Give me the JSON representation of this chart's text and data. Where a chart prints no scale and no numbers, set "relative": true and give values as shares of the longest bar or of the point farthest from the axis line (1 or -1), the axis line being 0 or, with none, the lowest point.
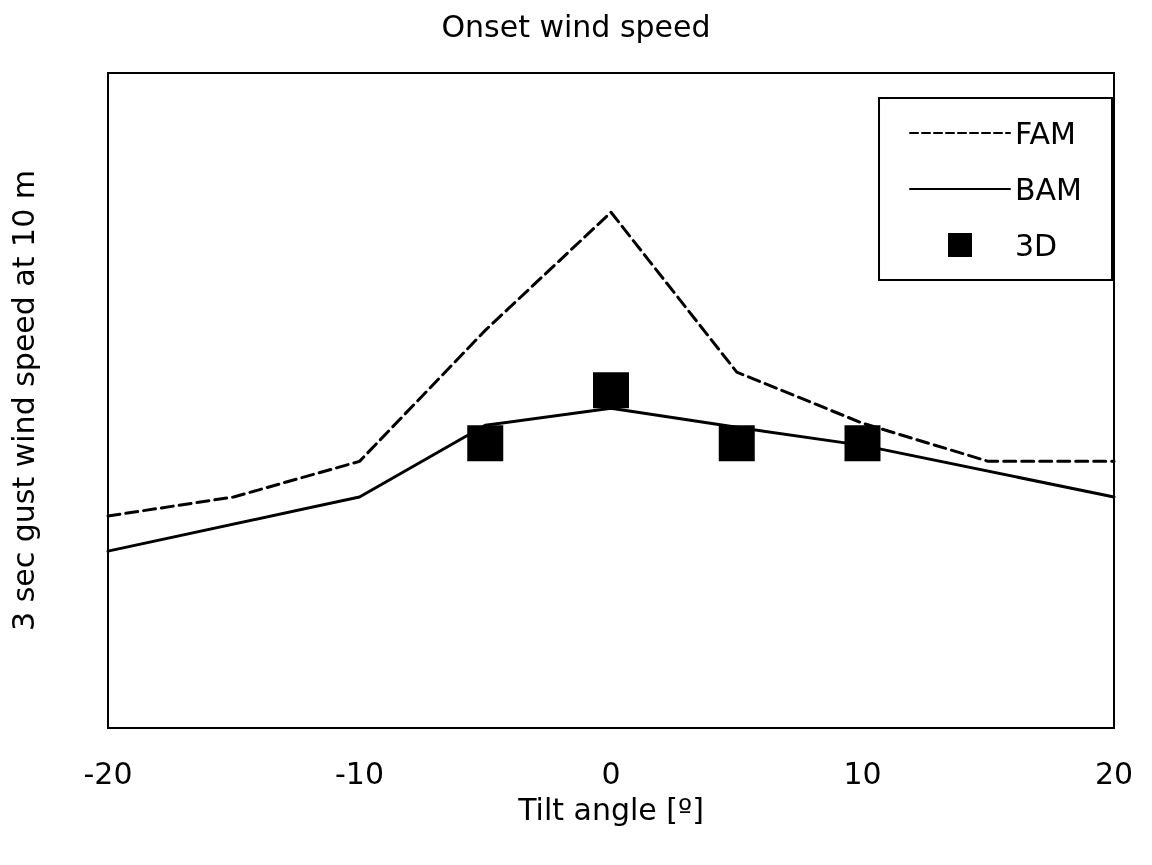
{
  "chart_data": {
    "type": "line",
    "title": "Onset wind speed",
    "xlabel": "Tilt angle [º]",
    "ylabel": "3 sec gust wind speed at 10 m",
    "relative": true,
    "tick_labels": "x",
    "grid": false,
    "legend": "top right",
    "xlim": [
      -20,
      20
    ],
    "xticks": [
      -20,
      -10,
      0,
      10,
      20
    ],
    "series": [
      {
        "name": "FAM",
        "color": "#000000",
        "line_style": "dashed",
        "marker": "none",
        "x": [
          -20,
          -15,
          -10,
          -5,
          0,
          5,
          10,
          15,
          20
        ],
        "values": [
          0.411,
          0.448,
          0.517,
          0.771,
          1,
          0.69,
          0.591,
          0.517,
          0.517
        ]
      },
      {
        "name": "BAM",
        "color": "#000000",
        "line_style": "solid",
        "marker": "none",
        "x": [
          -20,
          -10,
          -5,
          0,
          5,
          10,
          20
        ],
        "values": [
          0.343,
          0.448,
          0.587,
          0.62,
          0.583,
          0.548,
          0.448
        ]
      },
      {
        "name": "3D",
        "type": "scatter",
        "color": "#000000",
        "marker": "square",
        "x": [
          -5,
          0,
          5,
          10
        ],
        "values": [
          0.552,
          0.655,
          0.552,
          0.552
        ]
      }
    ]
  }
}
